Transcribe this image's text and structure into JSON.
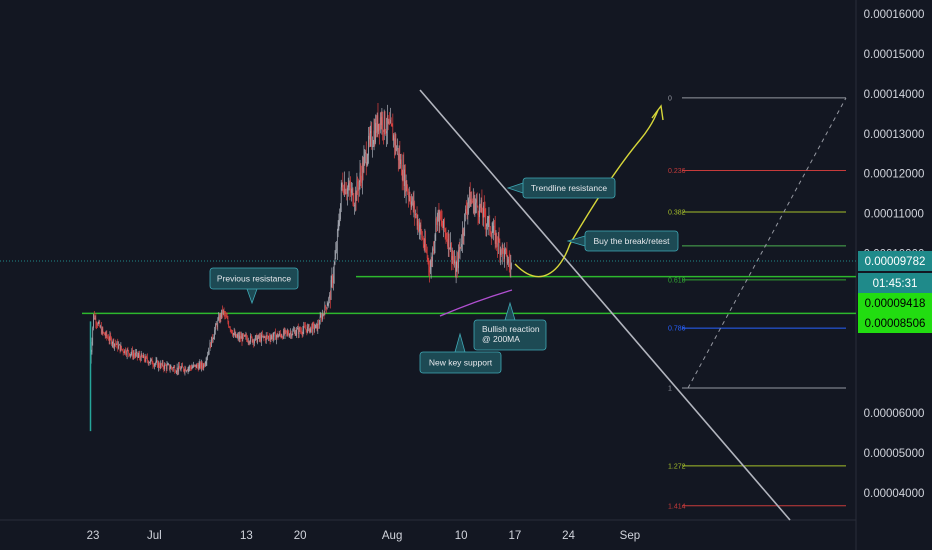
{
  "chart_data": {
    "type": "candlestick",
    "title": "",
    "x_ticks": [
      "23",
      "Jul",
      "13",
      "20",
      "Aug",
      "10",
      "17",
      "24",
      "Sep"
    ],
    "y_ticks": [
      "0.00016000",
      "0.00015000",
      "0.00014000",
      "0.00013000",
      "0.00012000",
      "0.00011000",
      "0.00010000",
      "0.00006000",
      "0.00005000",
      "0.00004000"
    ],
    "price_tags": [
      {
        "value": "0.00009782",
        "color": "#1f8a8a",
        "text_color": "#ffffff"
      },
      {
        "value": "01:45:31",
        "color": "#1f8a8a",
        "text_color": "#ffffff"
      },
      {
        "value": "0.00009418",
        "color": "#22dd11",
        "text_color": "#000000"
      },
      {
        "value": "0.00008506",
        "color": "#22dd11",
        "text_color": "#000000"
      }
    ],
    "fib_levels": [
      {
        "label": "0",
        "value": 0.000139,
        "color": "#9598a1"
      },
      {
        "label": "0.236",
        "value": 0.0001208,
        "color": "#c73b3b"
      },
      {
        "label": "0.382",
        "value": 0.0001104,
        "color": "#a5bf2a"
      },
      {
        "label": "0.5",
        "value": 0.0001019,
        "color": "#4caf50"
      },
      {
        "label": "0.618",
        "value": 9.34e-05,
        "color": "#31a631"
      },
      {
        "label": "0.786",
        "value": 8.13e-05,
        "color": "#2962ff"
      },
      {
        "label": "1",
        "value": 6.63e-05,
        "color": "#9598a1"
      },
      {
        "label": "1.272",
        "value": 4.68e-05,
        "color": "#a5bf2a"
      },
      {
        "label": "1.414",
        "value": 3.68e-05,
        "color": "#c73b3b"
      }
    ],
    "annotations": [
      {
        "name": "previous-resistance-callout",
        "text": "Previous resistance",
        "pointer": "down"
      },
      {
        "name": "trendline-resistance-callout",
        "text": "Trendline resistance",
        "pointer": "left"
      },
      {
        "name": "buy-break-retest-callout",
        "text": "Buy the break/retest",
        "pointer": "left"
      },
      {
        "name": "bullish-reaction-callout",
        "text": "Bullish reaction\n@ 200MA",
        "pointer": "up"
      },
      {
        "name": "new-key-support-callout",
        "text": "New key support",
        "pointer": "up"
      }
    ],
    "colors": {
      "background": "#131722",
      "up_candle": "#a8acb5",
      "down_candle": "#e0413f",
      "support_line": "#2db82d",
      "trendline": "#b2b5be",
      "projection": "#d6d63a",
      "moving_average": "#b04fd0",
      "callout_fill": "#1d4a54",
      "callout_border": "#3fa9b6"
    },
    "grid": false,
    "y_scale": "linear"
  }
}
